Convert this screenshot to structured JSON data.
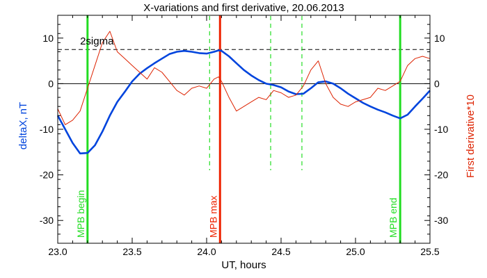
{
  "chart_data": {
    "type": "line",
    "title": "X-variations and first derivative, 20.06.2013",
    "xlabel": "UT, hours",
    "ylabel_left": "deltaX, nT",
    "ylabel_right": "First derivative*10",
    "xlim": [
      23.0,
      25.5
    ],
    "ylim": [
      -35,
      15
    ],
    "x_ticks": [
      "23.0",
      "23.5",
      "24.0",
      "24.5",
      "25.0",
      "25.5"
    ],
    "y_ticks": [
      "10",
      "0",
      "-10",
      "-20",
      "-30"
    ],
    "threshold": {
      "label": "2sigma",
      "value": 7.5
    },
    "zero_line": 0,
    "vlines": [
      {
        "x": 23.2,
        "label": "MPB begin",
        "color": "#22dd22",
        "style": "solid"
      },
      {
        "x": 24.02,
        "label": "",
        "color": "#22dd22",
        "style": "dashed"
      },
      {
        "x": 24.09,
        "label": "MPB max",
        "color": "#ee2200",
        "style": "solid"
      },
      {
        "x": 24.43,
        "label": "",
        "color": "#22dd22",
        "style": "dashed"
      },
      {
        "x": 24.64,
        "label": "",
        "color": "#22dd22",
        "style": "dashed"
      },
      {
        "x": 25.3,
        "label": "MPB end",
        "color": "#22dd22",
        "style": "solid"
      }
    ],
    "series": [
      {
        "color": "#0044dd",
        "x": [
          23.0,
          23.05,
          23.1,
          23.15,
          23.2,
          23.25,
          23.3,
          23.35,
          23.4,
          23.45,
          23.5,
          23.55,
          23.6,
          23.65,
          23.7,
          23.75,
          23.8,
          23.85,
          23.9,
          23.95,
          24.0,
          24.05,
          24.08,
          24.1,
          24.15,
          24.2,
          24.25,
          24.3,
          24.35,
          24.4,
          24.45,
          24.5,
          24.55,
          24.6,
          24.65,
          24.7,
          24.75,
          24.8,
          24.85,
          24.9,
          24.95,
          25.0,
          25.05,
          25.1,
          25.15,
          25.2,
          25.25,
          25.3,
          25.35,
          25.4,
          25.45,
          25.5
        ],
        "y": [
          -7,
          -10,
          -13,
          -15.3,
          -15.2,
          -13.5,
          -10.5,
          -7,
          -4,
          -1.8,
          0.5,
          2.2,
          3.4,
          4.5,
          5.5,
          6.5,
          7,
          7.2,
          7,
          6.7,
          6.6,
          7,
          7.3,
          7.2,
          6,
          4.5,
          3,
          1.8,
          0.8,
          0,
          -0.3,
          -0.8,
          -1.7,
          -2.3,
          -2.2,
          -1,
          0.3,
          0.5,
          0,
          -1,
          -2.2,
          -3.2,
          -4.2,
          -5,
          -5.7,
          -6.3,
          -7,
          -7.6,
          -6.8,
          -5,
          -3.3,
          -1.5
        ]
      },
      {
        "color": "#dd2200",
        "x": [
          23.0,
          23.05,
          23.1,
          23.15,
          23.2,
          23.25,
          23.3,
          23.35,
          23.4,
          23.45,
          23.5,
          23.55,
          23.6,
          23.65,
          23.7,
          23.75,
          23.8,
          23.85,
          23.9,
          23.95,
          24.0,
          24.05,
          24.08,
          24.1,
          24.15,
          24.2,
          24.25,
          24.3,
          24.35,
          24.4,
          24.45,
          24.5,
          24.55,
          24.6,
          24.65,
          24.7,
          24.75,
          24.8,
          24.85,
          24.9,
          24.95,
          25.0,
          25.05,
          25.1,
          25.15,
          25.2,
          25.25,
          25.3,
          25.35,
          25.4,
          25.45,
          25.5
        ],
        "y": [
          -5.5,
          -9,
          -8,
          -6,
          -1,
          4,
          9,
          11.5,
          7,
          5.5,
          4,
          2.5,
          1,
          3.5,
          2.5,
          0.5,
          -1.5,
          -2.5,
          -1,
          -0.5,
          -1,
          1,
          1.5,
          0.5,
          -3,
          -6,
          -5,
          -4,
          -3,
          -3.5,
          -1.5,
          -2,
          -3,
          -2.5,
          -0.5,
          3,
          5,
          0,
          -3,
          -4.5,
          -5,
          -4,
          -3.5,
          -3,
          -1,
          -1.5,
          -0.5,
          0.5,
          4,
          5.5,
          6,
          5.5
        ]
      }
    ]
  }
}
